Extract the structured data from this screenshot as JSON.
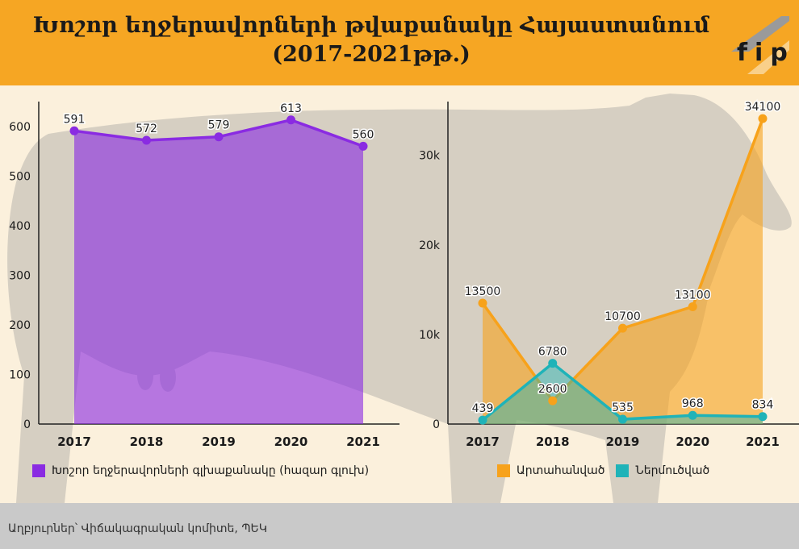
{
  "header": {
    "title_line1": "Խոշոր եղջերավորների թվաքանակը Հայաստանում",
    "title_line2": "(2017-2021թթ.)",
    "logo_text": "fip"
  },
  "footer": {
    "source": "Աղբյուրներ՝ Վիճակագրական կոմիտե, ՊԵԿ"
  },
  "colors": {
    "header_bg": "#f6a623",
    "background": "#fbf0dc",
    "cow": "#d6cfc2",
    "purple": "#8a2be2",
    "orange": "#f7a21b",
    "teal": "#1fb3b8",
    "footer_bg": "#c9c9c9"
  },
  "chart_data": [
    {
      "type": "area",
      "categories": [
        "2017",
        "2018",
        "2019",
        "2020",
        "2021"
      ],
      "series": [
        {
          "name": "Խոշոր եղջերավորների գլխաքանակը (հազար գլուխ)",
          "values": [
            591,
            572,
            579,
            613,
            560
          ],
          "labels": [
            "591",
            "572",
            "579",
            "613",
            "560"
          ]
        }
      ],
      "ylim": [
        0,
        650
      ],
      "yticks": [
        0,
        100,
        200,
        300,
        400,
        500,
        600
      ],
      "ytick_labels": [
        "0",
        "100",
        "200",
        "300",
        "400",
        "500",
        "600"
      ],
      "grid": false,
      "legend": "bottom"
    },
    {
      "type": "area",
      "categories": [
        "2017",
        "2018",
        "2019",
        "2020",
        "2021"
      ],
      "series": [
        {
          "name": "Արտահանված",
          "values": [
            13500,
            2600,
            10700,
            13100,
            34100
          ],
          "labels": [
            "13500",
            "2600",
            "10700",
            "13100",
            "34100"
          ]
        },
        {
          "name": "Ներմուծված",
          "values": [
            439,
            6780,
            535,
            968,
            834
          ],
          "labels": [
            "439",
            "6780",
            "535",
            "968",
            "834"
          ]
        }
      ],
      "ylim": [
        0,
        36000
      ],
      "yticks": [
        0,
        10000,
        20000,
        30000
      ],
      "ytick_labels": [
        "0",
        "10k",
        "20k",
        "30k"
      ],
      "grid": false,
      "legend": "bottom"
    }
  ]
}
